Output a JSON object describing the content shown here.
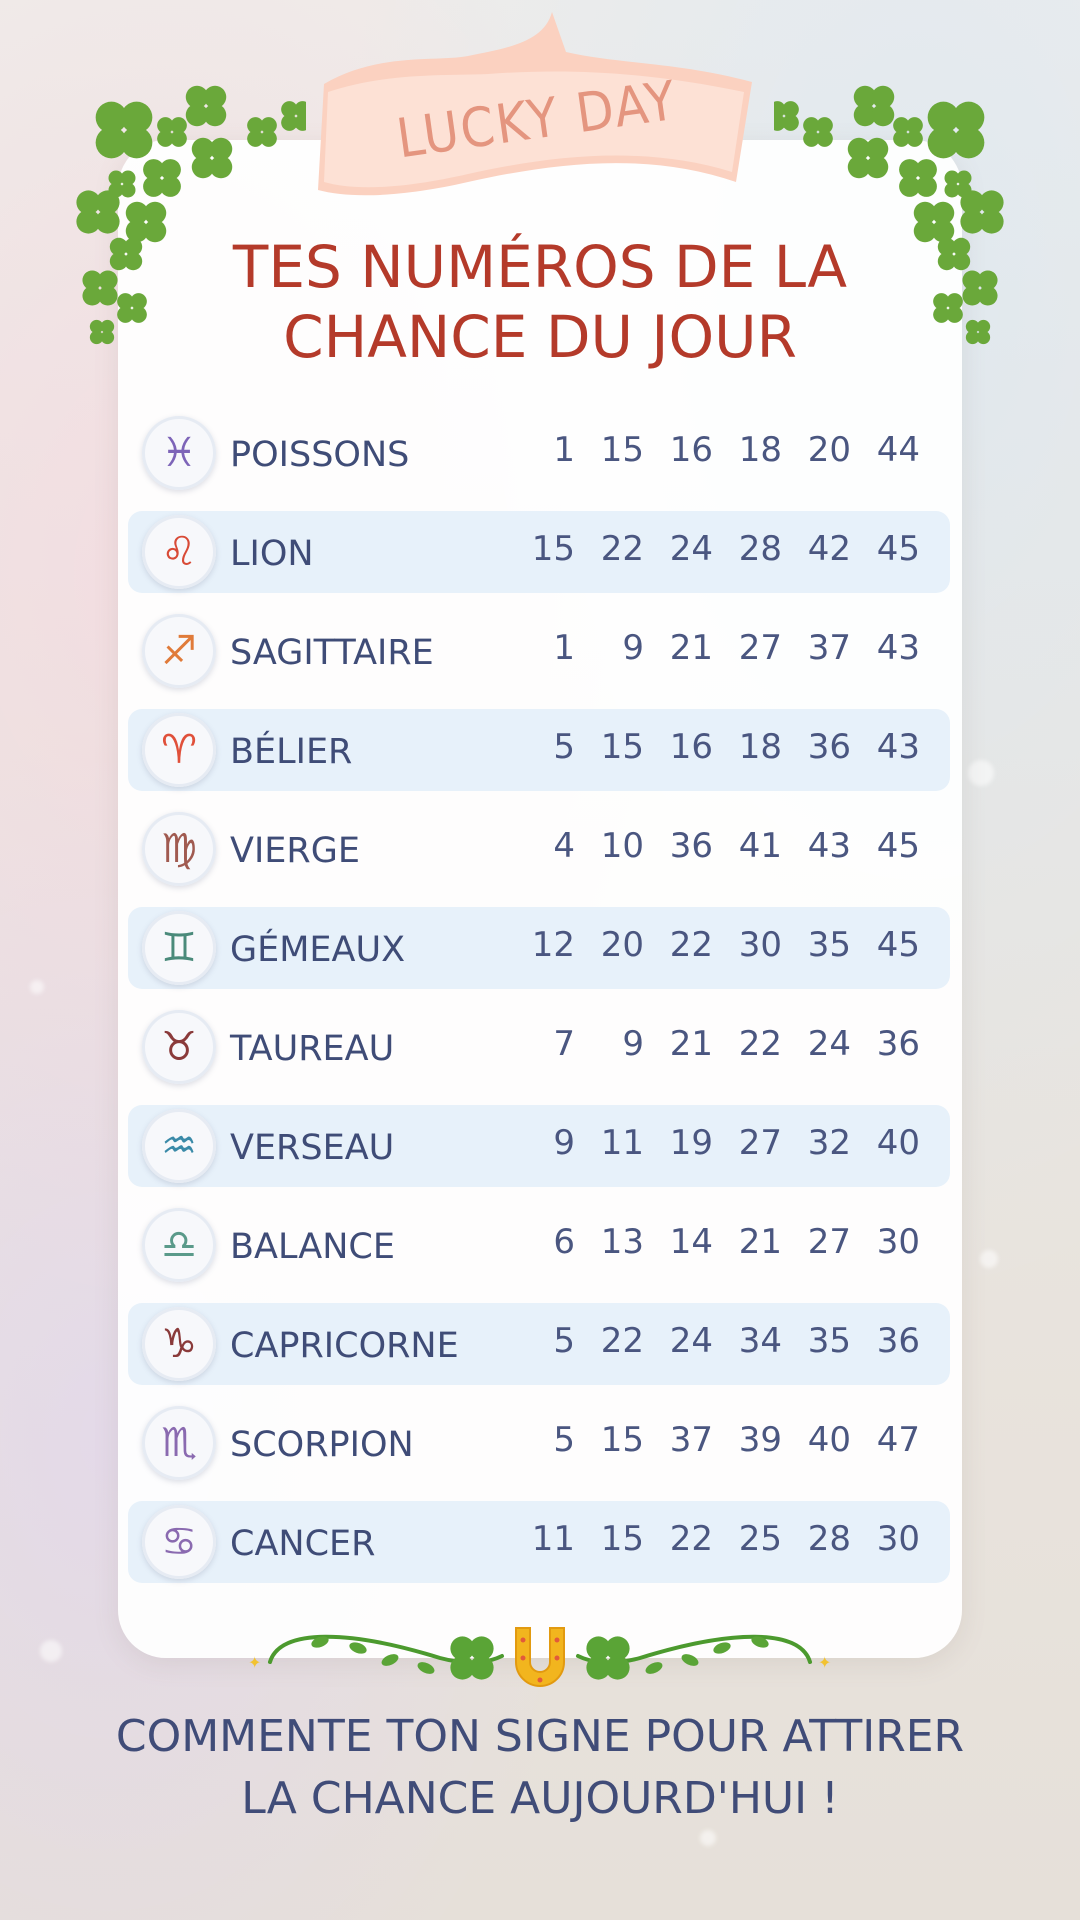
{
  "banner": {
    "text": "LUCKY DAY"
  },
  "title": {
    "line1": "TES NUMÉROS DE LA",
    "line2": "CHANCE DU JOUR"
  },
  "signs": [
    {
      "name": "POISSONS",
      "icon": "pisces-icon",
      "glyph": "♓",
      "color": "#7d64b8",
      "numbers": [
        "1",
        "15",
        "16",
        "18",
        "20",
        "44"
      ]
    },
    {
      "name": "LION",
      "icon": "leo-icon",
      "glyph": "♌",
      "color": "#d84a36",
      "numbers": [
        "15",
        "22",
        "24",
        "28",
        "42",
        "45"
      ]
    },
    {
      "name": "SAGITTAIRE",
      "icon": "sagittarius-icon",
      "glyph": "♐",
      "color": "#e07b3a",
      "numbers": [
        "1",
        "9",
        "21",
        "27",
        "37",
        "43"
      ]
    },
    {
      "name": "BÉLIER",
      "icon": "aries-icon",
      "glyph": "♈",
      "color": "#e0503a",
      "numbers": [
        "5",
        "15",
        "16",
        "18",
        "36",
        "43"
      ]
    },
    {
      "name": "VIERGE",
      "icon": "virgo-icon",
      "glyph": "♍",
      "color": "#a05a50",
      "numbers": [
        "4",
        "10",
        "36",
        "41",
        "43",
        "45"
      ]
    },
    {
      "name": "GÉMEAUX",
      "icon": "gemini-icon",
      "glyph": "♊",
      "color": "#4a8a7a",
      "numbers": [
        "12",
        "20",
        "22",
        "30",
        "35",
        "45"
      ]
    },
    {
      "name": "TAUREAU",
      "icon": "taurus-icon",
      "glyph": "♉",
      "color": "#8a3a3a",
      "numbers": [
        "7",
        "9",
        "21",
        "22",
        "24",
        "36"
      ]
    },
    {
      "name": "VERSEAU",
      "icon": "aquarius-icon",
      "glyph": "♒",
      "color": "#3a8aa8",
      "numbers": [
        "9",
        "11",
        "19",
        "27",
        "32",
        "40"
      ]
    },
    {
      "name": "BALANCE",
      "icon": "libra-icon",
      "glyph": "♎",
      "color": "#5a9a8a",
      "numbers": [
        "6",
        "13",
        "14",
        "21",
        "27",
        "30"
      ]
    },
    {
      "name": "CAPRICORNE",
      "icon": "capricorn-icon",
      "glyph": "♑",
      "color": "#8a3a3a",
      "numbers": [
        "5",
        "22",
        "24",
        "34",
        "35",
        "36"
      ]
    },
    {
      "name": "SCORPION",
      "icon": "scorpio-icon",
      "glyph": "♏",
      "color": "#8a6ab0",
      "numbers": [
        "5",
        "15",
        "37",
        "39",
        "40",
        "47"
      ]
    },
    {
      "name": "CANCER",
      "icon": "cancer-icon",
      "glyph": "♋",
      "color": "#8a6ab0",
      "numbers": [
        "11",
        "15",
        "22",
        "25",
        "28",
        "30"
      ]
    }
  ],
  "cta": {
    "line1": "COMMENTE TON SIGNE POUR ATTIRER",
    "line2": "LA CHANCE AUJOURD'HUI !"
  },
  "colors": {
    "title": "#b43a2a",
    "text": "#3f4c77",
    "rowAlt": "#e7f1fa",
    "clover": "#6aa83a",
    "banner": "#fbd1c0"
  }
}
